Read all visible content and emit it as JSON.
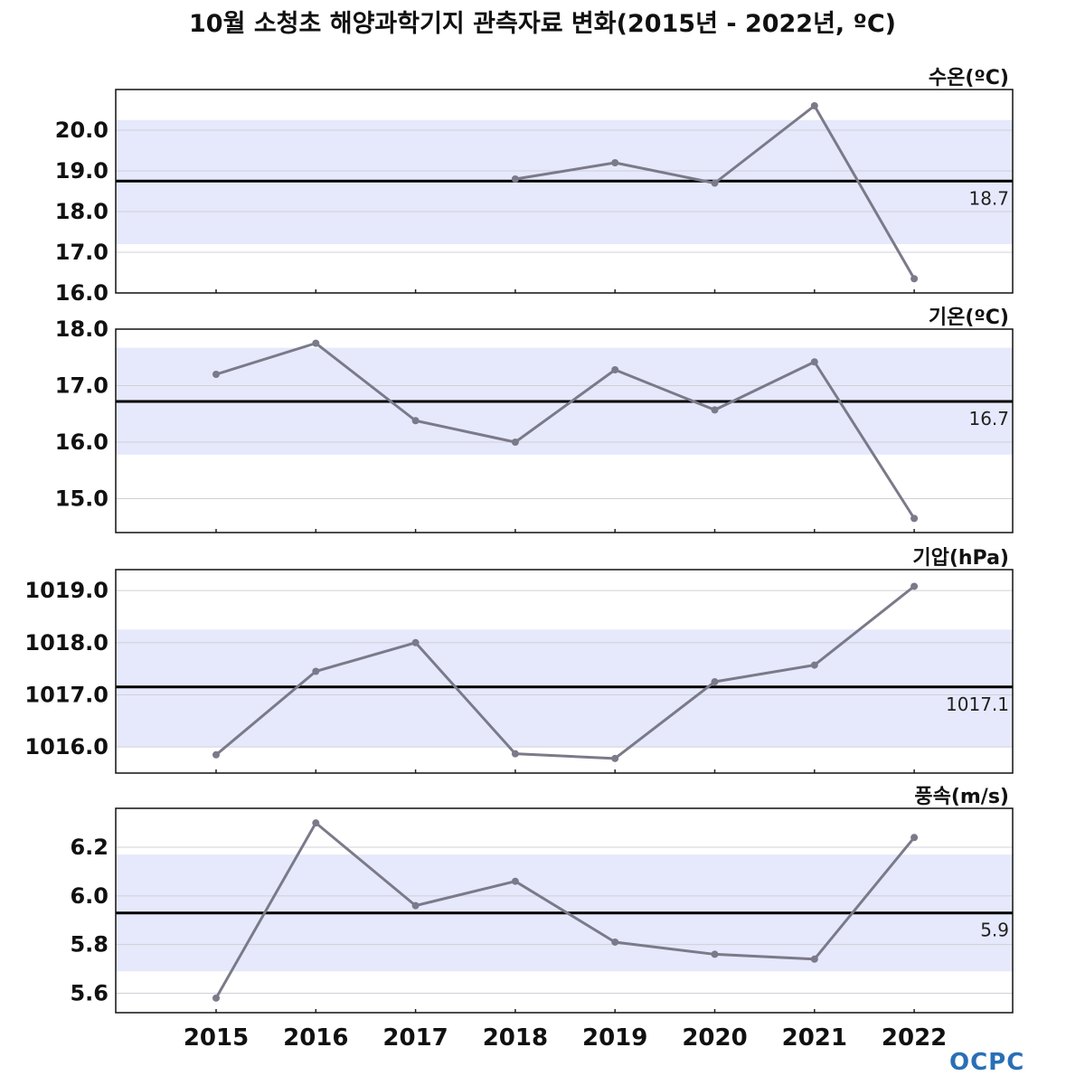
{
  "title": "10월 소청초 해양과학기지 관측자료 변화(2015년 - 2022년, ºC)",
  "logo": {
    "text": "OCPC"
  },
  "chart_data": [
    {
      "type": "line",
      "panel_title": "수온(ºC)",
      "x": [
        "2015",
        "2016",
        "2017",
        "2018",
        "2019",
        "2020",
        "2021",
        "2022"
      ],
      "series": [
        {
          "values": [
            null,
            null,
            null,
            18.8,
            19.2,
            18.7,
            20.6,
            16.35
          ],
          "color": "#7a7a8a"
        }
      ],
      "mean": 18.75,
      "mean_label": "18.7",
      "band": [
        17.2,
        20.25
      ],
      "ylim": [
        16.0,
        21.0
      ],
      "yticks": [
        16.0,
        17.0,
        18.0,
        19.0,
        20.0
      ],
      "ytick_labels": [
        "16.0",
        "17.0",
        "18.0",
        "19.0",
        "20.0"
      ]
    },
    {
      "type": "line",
      "panel_title": "기온(ºC)",
      "x": [
        "2015",
        "2016",
        "2017",
        "2018",
        "2019",
        "2020",
        "2021",
        "2022"
      ],
      "series": [
        {
          "values": [
            17.2,
            17.75,
            16.38,
            16.0,
            17.28,
            16.57,
            17.42,
            14.65
          ],
          "color": "#7a7a8a"
        }
      ],
      "mean": 16.72,
      "mean_label": "16.7",
      "band": [
        15.78,
        17.67
      ],
      "ylim": [
        14.4,
        18.0
      ],
      "yticks": [
        15.0,
        16.0,
        17.0,
        18.0
      ],
      "ytick_labels": [
        "15.0",
        "16.0",
        "17.0",
        "18.0"
      ]
    },
    {
      "type": "line",
      "panel_title": "기압(hPa)",
      "x": [
        "2015",
        "2016",
        "2017",
        "2018",
        "2019",
        "2020",
        "2021",
        "2022"
      ],
      "series": [
        {
          "values": [
            1015.85,
            1017.45,
            1018.0,
            1015.87,
            1015.78,
            1017.25,
            1017.57,
            1019.08
          ],
          "color": "#7a7a8a"
        }
      ],
      "mean": 1017.15,
      "mean_label": "1017.1",
      "band": [
        1016.0,
        1018.25
      ],
      "ylim": [
        1015.5,
        1019.4
      ],
      "yticks": [
        1016.0,
        1017.0,
        1018.0,
        1019.0
      ],
      "ytick_labels": [
        "1016.0",
        "1017.0",
        "1018.0",
        "1019.0"
      ]
    },
    {
      "type": "line",
      "panel_title": "풍속(m/s)",
      "x": [
        "2015",
        "2016",
        "2017",
        "2018",
        "2019",
        "2020",
        "2021",
        "2022"
      ],
      "series": [
        {
          "values": [
            5.58,
            6.3,
            5.96,
            6.06,
            5.81,
            5.76,
            5.74,
            6.24
          ],
          "color": "#7a7a8a"
        }
      ],
      "mean": 5.93,
      "mean_label": "5.9",
      "band": [
        5.69,
        6.17
      ],
      "ylim": [
        5.52,
        6.36
      ],
      "yticks": [
        5.6,
        5.8,
        6.0,
        6.2
      ],
      "ytick_labels": [
        "5.6",
        "5.8",
        "6.0",
        "6.2"
      ]
    }
  ],
  "colors": {
    "band": "#e6e9fb",
    "mean_line": "#000000",
    "series": "#7a7a8a",
    "grid": "#d0d0d8"
  }
}
